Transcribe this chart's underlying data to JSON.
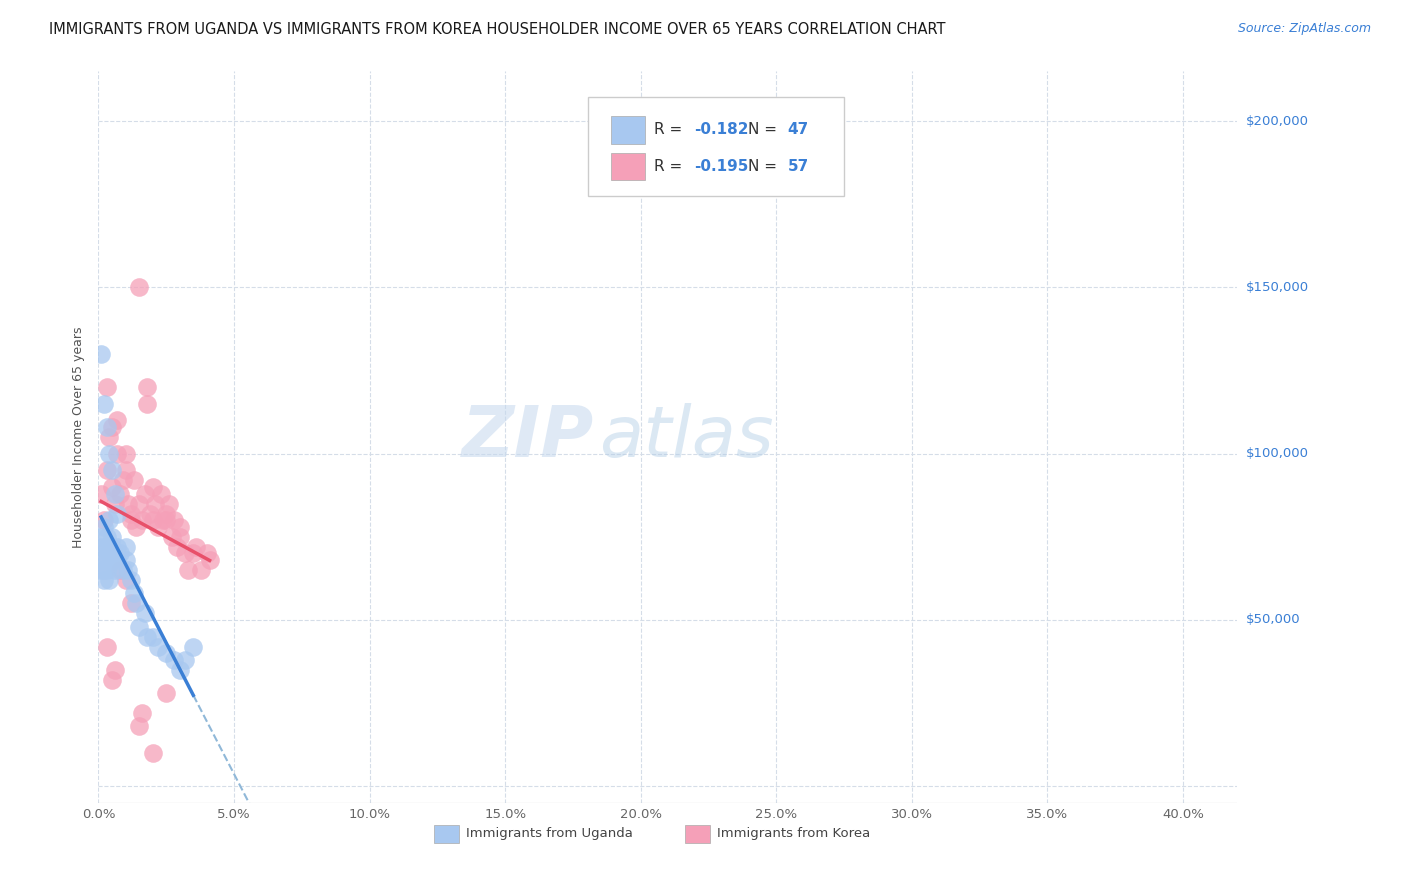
{
  "title": "IMMIGRANTS FROM UGANDA VS IMMIGRANTS FROM KOREA HOUSEHOLDER INCOME OVER 65 YEARS CORRELATION CHART",
  "source": "Source: ZipAtlas.com",
  "ylabel": "Householder Income Over 65 years",
  "y_ticks": [
    0,
    50000,
    100000,
    150000,
    200000
  ],
  "y_tick_labels": [
    "",
    "$50,000",
    "$100,000",
    "$150,000",
    "$200,000"
  ],
  "x_ticks": [
    0.0,
    0.05,
    0.1,
    0.15,
    0.2,
    0.25,
    0.3,
    0.35,
    0.4
  ],
  "x_tick_labels": [
    "0.0%",
    "5.0%",
    "10.0%",
    "15.0%",
    "20.0%",
    "25.0%",
    "30.0%",
    "35.0%",
    "40.0%"
  ],
  "x_min": 0.0,
  "x_max": 0.42,
  "y_min": -5000,
  "y_max": 215000,
  "uganda_color": "#a8c8f0",
  "korea_color": "#f5a0b8",
  "uganda_line_color": "#3a7fd5",
  "korea_line_color": "#e8506a",
  "dashed_line_color": "#90b8d8",
  "legend_uganda_R": "-0.182",
  "legend_uganda_N": "47",
  "legend_korea_R": "-0.195",
  "legend_korea_N": "57",
  "watermark_zip": "ZIP",
  "watermark_atlas": "atlas",
  "background_color": "#ffffff",
  "grid_color": "#d5dde8",
  "uganda_x": [
    0.001,
    0.001,
    0.001,
    0.001,
    0.002,
    0.002,
    0.002,
    0.002,
    0.003,
    0.003,
    0.003,
    0.003,
    0.004,
    0.004,
    0.004,
    0.005,
    0.005,
    0.005,
    0.006,
    0.006,
    0.007,
    0.007,
    0.008,
    0.009,
    0.01,
    0.01,
    0.011,
    0.012,
    0.013,
    0.014,
    0.015,
    0.017,
    0.018,
    0.02,
    0.022,
    0.025,
    0.028,
    0.03,
    0.032,
    0.035,
    0.001,
    0.002,
    0.003,
    0.004,
    0.005,
    0.006,
    0.007
  ],
  "uganda_y": [
    65000,
    72000,
    68000,
    75000,
    70000,
    65000,
    62000,
    78000,
    72000,
    68000,
    75000,
    65000,
    80000,
    70000,
    62000,
    72000,
    68000,
    75000,
    65000,
    70000,
    68000,
    72000,
    70000,
    65000,
    72000,
    68000,
    65000,
    62000,
    58000,
    55000,
    48000,
    52000,
    45000,
    45000,
    42000,
    40000,
    38000,
    35000,
    38000,
    42000,
    130000,
    115000,
    108000,
    100000,
    95000,
    88000,
    82000
  ],
  "korea_x": [
    0.001,
    0.002,
    0.003,
    0.004,
    0.005,
    0.006,
    0.007,
    0.008,
    0.009,
    0.01,
    0.011,
    0.012,
    0.013,
    0.014,
    0.015,
    0.016,
    0.017,
    0.018,
    0.019,
    0.02,
    0.021,
    0.022,
    0.023,
    0.024,
    0.025,
    0.026,
    0.027,
    0.028,
    0.029,
    0.03,
    0.032,
    0.033,
    0.035,
    0.036,
    0.038,
    0.04,
    0.041,
    0.003,
    0.005,
    0.007,
    0.01,
    0.012,
    0.015,
    0.018,
    0.02,
    0.025,
    0.03,
    0.003,
    0.006,
    0.008,
    0.012,
    0.016,
    0.02,
    0.025,
    0.015,
    0.01,
    0.005
  ],
  "korea_y": [
    88000,
    80000,
    95000,
    105000,
    90000,
    85000,
    100000,
    88000,
    92000,
    95000,
    85000,
    80000,
    92000,
    78000,
    85000,
    80000,
    88000,
    115000,
    82000,
    90000,
    85000,
    78000,
    88000,
    80000,
    82000,
    85000,
    75000,
    80000,
    72000,
    75000,
    70000,
    65000,
    70000,
    72000,
    65000,
    70000,
    68000,
    120000,
    108000,
    110000,
    100000,
    82000,
    150000,
    120000,
    80000,
    80000,
    78000,
    42000,
    35000,
    65000,
    55000,
    22000,
    10000,
    28000,
    18000,
    62000,
    32000
  ],
  "title_fontsize": 10.5,
  "source_fontsize": 9,
  "axis_label_fontsize": 9,
  "tick_fontsize": 9.5,
  "legend_fontsize": 11,
  "watermark_fontsize_zip": 52,
  "watermark_fontsize_atlas": 52
}
